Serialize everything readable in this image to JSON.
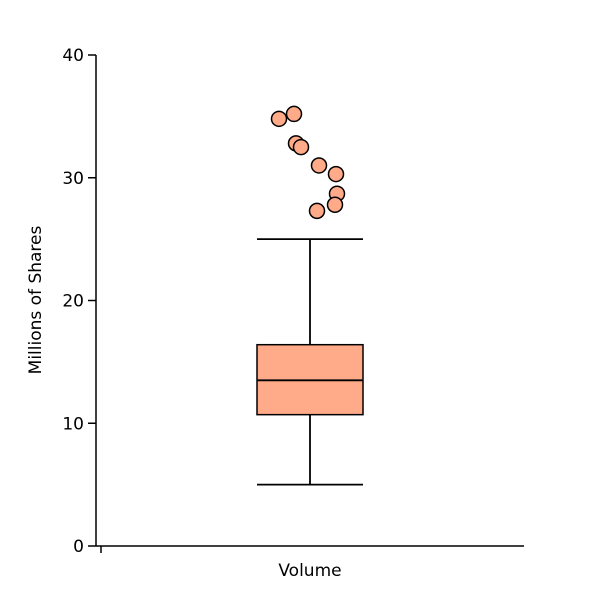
{
  "chart_data": {
    "type": "box",
    "title": "",
    "xlabel": "",
    "ylabel": "Millions of Shares",
    "ylim": [
      0,
      40
    ],
    "yticks": [
      "0",
      "10",
      "20",
      "30",
      "40"
    ],
    "categories": [
      "Volume"
    ],
    "box": {
      "whisker_low": 5.0,
      "q1": 10.7,
      "median": 13.5,
      "q3": 16.4,
      "whisker_high": 25.0
    },
    "outliers": [
      {
        "x": -0.31,
        "y": 34.8
      },
      {
        "x": -0.16,
        "y": 35.2
      },
      {
        "x": -0.14,
        "y": 32.8
      },
      {
        "x": -0.09,
        "y": 32.5
      },
      {
        "x": 0.09,
        "y": 31.0
      },
      {
        "x": 0.26,
        "y": 30.3
      },
      {
        "x": 0.27,
        "y": 28.7
      },
      {
        "x": 0.25,
        "y": 27.8
      },
      {
        "x": 0.07,
        "y": 27.3
      }
    ],
    "box_fill": "#FFAA88",
    "outlier_fill": "#FFAA88",
    "stroke_color": "#000000",
    "grid": false,
    "legend": "none"
  }
}
